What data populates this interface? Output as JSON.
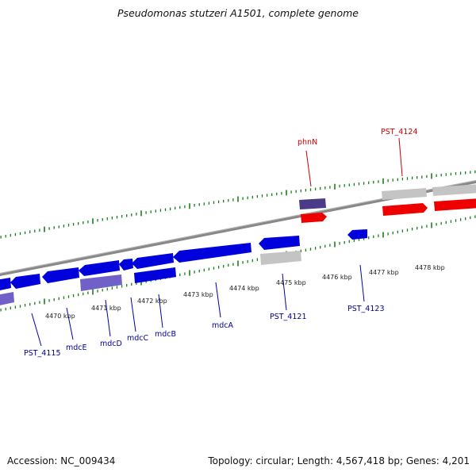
{
  "header": {
    "title": "Pseudomonas stutzeri A1501, complete genome"
  },
  "footer": {
    "accession": "Accession: NC_009434",
    "topology": "Topology: circular; Length: 4,567,418 bp; Genes: 4,201"
  },
  "colors": {
    "background": "#ffffff",
    "backbone": "#888888",
    "tick": "#1a7f1a",
    "forward_gene": "#ee0000",
    "forward_gene_dark": "#4a3a88",
    "reverse_gene": "#0000dd",
    "reverse_gene_light": "#7060c8",
    "gray_gene": "#c4c4c4",
    "label_forward": "#cc0000",
    "label_reverse": "#000099"
  },
  "scale_labels": [
    "4470 kbp",
    "4471 kbp",
    "4472 kbp",
    "4473 kbp",
    "4474 kbp",
    "4475 kbp",
    "4476 kbp",
    "4477 kbp",
    "4478 kbp"
  ],
  "gene_labels": [
    {
      "text": "phnN",
      "strand": "forward"
    },
    {
      "text": "PST_4124",
      "strand": "forward"
    },
    {
      "text": "PST_4115",
      "strand": "reverse"
    },
    {
      "text": "mdcE",
      "strand": "reverse"
    },
    {
      "text": "mdcD",
      "strand": "reverse"
    },
    {
      "text": "mdcC",
      "strand": "reverse"
    },
    {
      "text": "mdcB",
      "strand": "reverse"
    },
    {
      "text": "mdcA",
      "strand": "reverse"
    },
    {
      "text": "PST_4121",
      "strand": "reverse"
    },
    {
      "text": "PST_4123",
      "strand": "reverse"
    }
  ]
}
